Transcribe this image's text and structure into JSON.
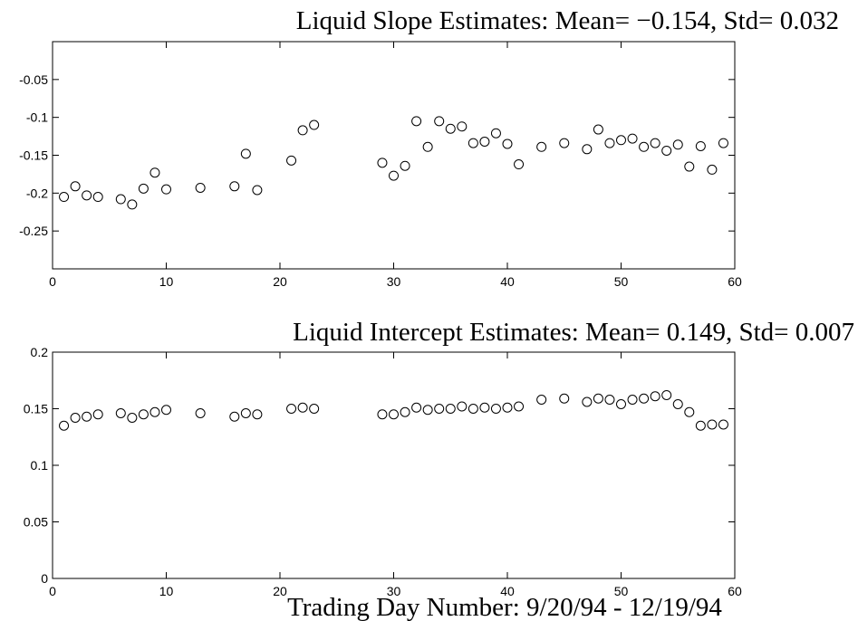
{
  "chart_data": [
    {
      "type": "scatter",
      "title": "Liquid Slope Estimates: Mean= −0.154, Std= 0.032",
      "color": "#000000",
      "x": [
        1,
        2,
        3,
        4,
        6,
        7,
        8,
        9,
        10,
        13,
        16,
        17,
        18,
        21,
        22,
        23,
        29,
        30,
        31,
        32,
        33,
        34,
        35,
        36,
        37,
        38,
        39,
        40,
        41,
        43,
        45,
        47,
        48,
        49,
        50,
        51,
        52,
        53,
        54,
        55,
        56,
        57,
        58,
        59
      ],
      "values": [
        -0.205,
        -0.191,
        -0.203,
        -0.205,
        -0.208,
        -0.215,
        -0.194,
        -0.173,
        -0.195,
        -0.193,
        -0.191,
        -0.148,
        -0.196,
        -0.157,
        -0.117,
        -0.11,
        -0.16,
        -0.177,
        -0.164,
        -0.105,
        -0.139,
        -0.105,
        -0.115,
        -0.112,
        -0.134,
        -0.132,
        -0.121,
        -0.135,
        -0.162,
        -0.139,
        -0.134,
        -0.142,
        -0.116,
        -0.134,
        -0.13,
        -0.128,
        -0.139,
        -0.134,
        -0.144,
        -0.136,
        -0.165,
        -0.138,
        -0.169,
        -0.134
      ],
      "xlim": [
        0,
        60
      ],
      "xticks": [
        0,
        10,
        20,
        30,
        40,
        50,
        60
      ],
      "ylim": [
        -0.3,
        0
      ],
      "yticks": [
        -0.25,
        -0.2,
        -0.15,
        -0.1,
        -0.05
      ]
    },
    {
      "type": "scatter",
      "title": "Liquid Intercept Estimates: Mean= 0.149, Std= 0.007",
      "xlabel": "Trading Day Number: 9/20/94 - 12/19/94",
      "color": "#000000",
      "x": [
        1,
        2,
        3,
        4,
        6,
        7,
        8,
        9,
        10,
        13,
        16,
        17,
        18,
        21,
        22,
        23,
        29,
        30,
        31,
        32,
        33,
        34,
        35,
        36,
        37,
        38,
        39,
        40,
        41,
        43,
        45,
        47,
        48,
        49,
        50,
        51,
        52,
        53,
        54,
        55,
        56,
        57,
        58,
        59
      ],
      "values": [
        0.135,
        0.142,
        0.143,
        0.145,
        0.146,
        0.142,
        0.145,
        0.147,
        0.149,
        0.146,
        0.143,
        0.146,
        0.145,
        0.15,
        0.151,
        0.15,
        0.145,
        0.145,
        0.147,
        0.151,
        0.149,
        0.15,
        0.15,
        0.152,
        0.15,
        0.151,
        0.15,
        0.151,
        0.152,
        0.158,
        0.159,
        0.156,
        0.159,
        0.158,
        0.154,
        0.158,
        0.159,
        0.161,
        0.162,
        0.154,
        0.147,
        0.135,
        0.136,
        0.136
      ],
      "xlim": [
        0,
        60
      ],
      "xticks": [
        0,
        10,
        20,
        30,
        40,
        50,
        60
      ],
      "ylim": [
        0,
        0.2
      ],
      "yticks": [
        0,
        0.05,
        0.1,
        0.15,
        0.2
      ]
    }
  ]
}
